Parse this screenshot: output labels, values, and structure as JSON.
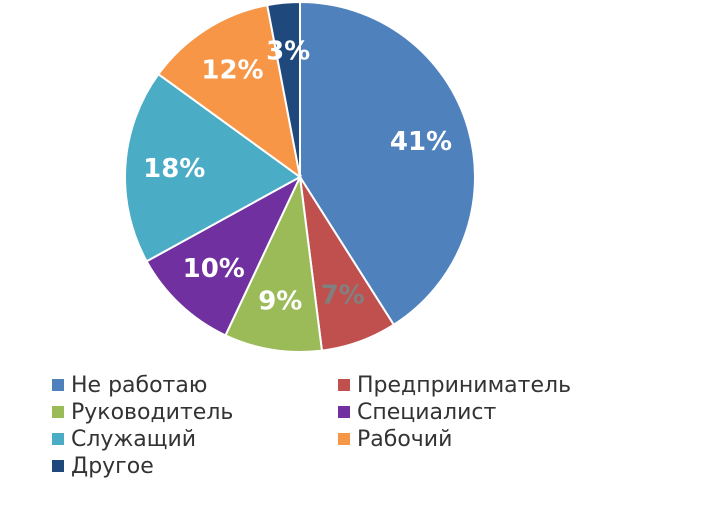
{
  "chart_data": {
    "type": "pie",
    "slices": [
      {
        "label": "Не работаю",
        "value": 41,
        "display": "41%",
        "color": "#4F81BD",
        "text_color": "#ffffff"
      },
      {
        "label": "Предприниматель",
        "value": 7,
        "display": "7%",
        "color": "#C0504D",
        "text_color": "#808080"
      },
      {
        "label": "Руководитель",
        "value": 9,
        "display": "9%",
        "color": "#9BBB59",
        "text_color": "#ffffff"
      },
      {
        "label": "Специалист",
        "value": 10,
        "display": "10%",
        "color": "#7030A0",
        "text_color": "#ffffff"
      },
      {
        "label": "Служащий",
        "value": 18,
        "display": "18%",
        "color": "#4BACC6",
        "text_color": "#ffffff"
      },
      {
        "label": "Рабочий",
        "value": 12,
        "display": "12%",
        "color": "#F79646",
        "text_color": "#ffffff"
      },
      {
        "label": "Другое",
        "value": 3,
        "display": "3%",
        "color": "#1F497D",
        "text_color": "#ffffff"
      }
    ],
    "legend_position": "bottom"
  }
}
